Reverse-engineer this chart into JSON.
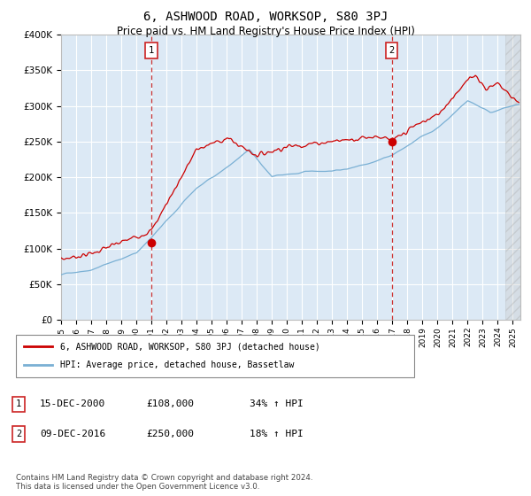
{
  "title": "6, ASHWOOD ROAD, WORKSOP, S80 3PJ",
  "subtitle": "Price paid vs. HM Land Registry's House Price Index (HPI)",
  "title_fontsize": 10,
  "subtitle_fontsize": 8.5,
  "ylim": [
    0,
    400000
  ],
  "xlim_start": 1995.0,
  "xlim_end": 2025.5,
  "background_color": "#dce9f5",
  "grid_color": "#ffffff",
  "legend_label_red": "6, ASHWOOD ROAD, WORKSOP, S80 3PJ (detached house)",
  "legend_label_blue": "HPI: Average price, detached house, Bassetlaw",
  "annotation1_date": "15-DEC-2000",
  "annotation1_price": "£108,000",
  "annotation1_hpi": "34% ↑ HPI",
  "annotation1_year": 2001.0,
  "annotation2_date": "09-DEC-2016",
  "annotation2_price": "£250,000",
  "annotation2_hpi": "18% ↑ HPI",
  "annotation2_year": 2016.95,
  "footer": "Contains HM Land Registry data © Crown copyright and database right 2024.\nThis data is licensed under the Open Government Licence v3.0.",
  "red_color": "#cc0000",
  "blue_color": "#7ab0d4"
}
